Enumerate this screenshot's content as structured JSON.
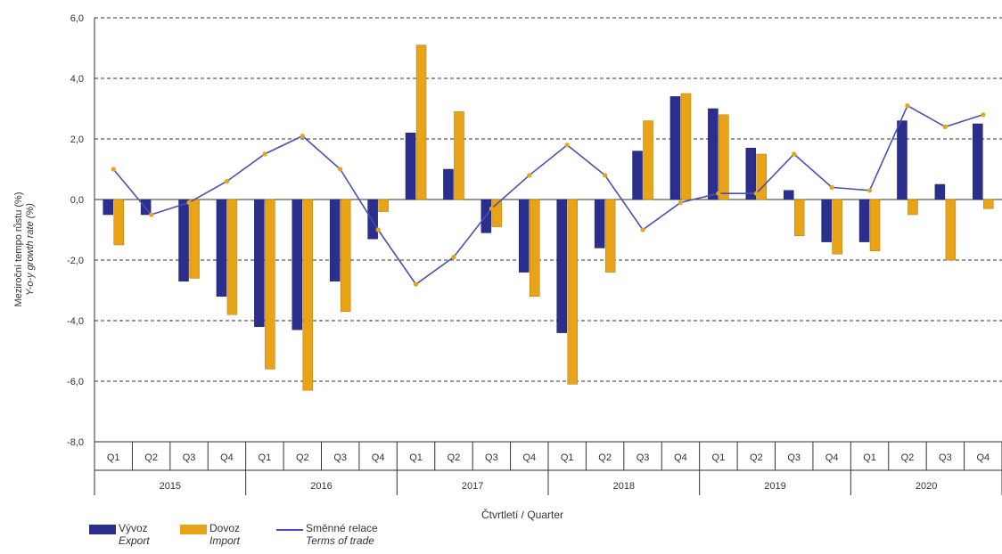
{
  "chart_data": {
    "type": "bar",
    "ylabel": "Meziroční tempo růstu (%)",
    "ylabel_en": "Y-o-y growth rate (%)",
    "xlabel": "Čtvrtletí / Quarter",
    "ylim": [
      -8,
      6
    ],
    "yticks": [
      6,
      4,
      2,
      0,
      -2,
      -4,
      -6,
      -8
    ],
    "ytick_labels": [
      "6,0",
      "4,0",
      "2,0",
      "0,0",
      "-2,0",
      "-4,0",
      "-6,0",
      "-8,0"
    ],
    "grid": true,
    "years": [
      "2015",
      "2016",
      "2017",
      "2018",
      "2019",
      "2020"
    ],
    "quarters": [
      "Q1",
      "Q2",
      "Q3",
      "Q4"
    ],
    "categories": [
      "2015 Q1",
      "2015 Q2",
      "2015 Q3",
      "2015 Q4",
      "2016 Q1",
      "2016 Q2",
      "2016 Q3",
      "2016 Q4",
      "2017 Q1",
      "2017 Q2",
      "2017 Q3",
      "2017 Q4",
      "2018 Q1",
      "2018 Q2",
      "2018 Q3",
      "2018 Q4",
      "2019 Q1",
      "2019 Q2",
      "2019 Q3",
      "2019 Q4",
      "2020 Q1",
      "2020 Q2",
      "2020 Q3",
      "2020 Q4"
    ],
    "series": [
      {
        "name": "Vývoz",
        "name_en": "Export",
        "kind": "bar",
        "color": "#2a2e8c",
        "values": [
          -0.5,
          -0.5,
          -2.7,
          -3.2,
          -4.2,
          -4.3,
          -2.7,
          -1.3,
          2.2,
          1.0,
          -1.1,
          -2.4,
          -4.4,
          -1.6,
          1.6,
          3.4,
          3.0,
          1.7,
          0.3,
          -1.4,
          -1.4,
          2.6,
          0.5,
          2.5
        ]
      },
      {
        "name": "Dovoz",
        "name_en": "Import",
        "kind": "bar",
        "color": "#e8a317",
        "values": [
          -1.5,
          0.0,
          -2.6,
          -3.8,
          -5.6,
          -6.3,
          -3.7,
          -0.4,
          5.1,
          2.9,
          -0.9,
          -3.2,
          -6.1,
          -2.4,
          2.6,
          3.5,
          2.8,
          1.5,
          -1.2,
          -1.8,
          -1.7,
          -0.5,
          -2.0,
          -0.3
        ]
      },
      {
        "name": "Směnné relace",
        "name_en": "Terms of trade",
        "kind": "line",
        "color": "#4a4fb0",
        "marker_color": "#e8a317",
        "values": [
          1.0,
          -0.5,
          -0.1,
          0.6,
          1.5,
          2.1,
          1.0,
          -1.0,
          -2.8,
          -1.9,
          -0.3,
          0.8,
          1.8,
          0.8,
          -1.0,
          -0.1,
          0.2,
          0.2,
          1.5,
          0.4,
          0.3,
          3.1,
          2.4,
          2.8
        ]
      }
    ]
  }
}
